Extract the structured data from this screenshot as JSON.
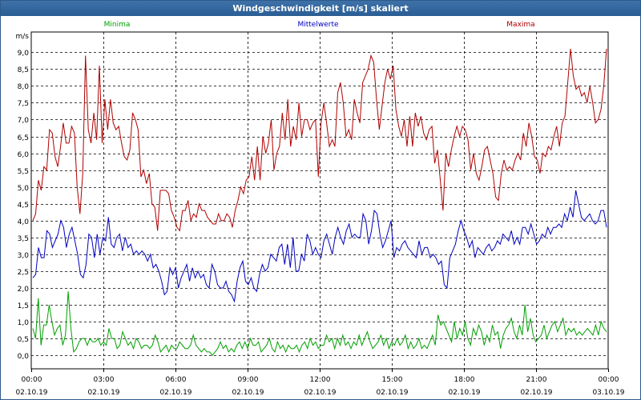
{
  "window": {
    "title": "Windgeschwindigkeit [m/s] skaliert"
  },
  "chart_data": {
    "type": "line",
    "title": "Windgeschwindigkeit [m/s] skaliert",
    "ylabel": "m/s",
    "ylim": [
      -0.4,
      9.6
    ],
    "y_ticks": [
      "0,0",
      "0,5",
      "1,0",
      "1,5",
      "2,0",
      "2,5",
      "3,0",
      "3,5",
      "4,0",
      "4,5",
      "5,0",
      "5,5",
      "6,0",
      "6,5",
      "7,0",
      "7,5",
      "8,0",
      "8,5",
      "9,0"
    ],
    "x_ticks": [
      {
        "time": "00:00",
        "date": "02.10.19"
      },
      {
        "time": "03:00",
        "date": "02.10.19"
      },
      {
        "time": "06:00",
        "date": "02.10.19"
      },
      {
        "time": "09:00",
        "date": "02.10.19"
      },
      {
        "time": "12:00",
        "date": "02.10.19"
      },
      {
        "time": "15:00",
        "date": "02.10.19"
      },
      {
        "time": "18:00",
        "date": "02.10.19"
      },
      {
        "time": "21:00",
        "date": "02.10.19"
      },
      {
        "time": "00:00",
        "date": "03.10.19"
      }
    ],
    "grid": true,
    "series": [
      {
        "name": "Minima",
        "color": "#00a000",
        "values": [
          0.8,
          0.5,
          1.7,
          0.3,
          0.9,
          0.9,
          1.5,
          1.0,
          0.6,
          0.8,
          0.9,
          0.3,
          0.6,
          1.9,
          0.8,
          0.1,
          0.2,
          0.4,
          0.5,
          0.5,
          0.3,
          0.5,
          0.4,
          0.4,
          0.5,
          0.3,
          0.4,
          0.3,
          0.8,
          0.5,
          0.5,
          0.2,
          0.3,
          0.7,
          0.5,
          0.3,
          0.4,
          0.2,
          0.5,
          0.4,
          0.2,
          0.3,
          0.3,
          0.2,
          0.3,
          0.6,
          0.4,
          0.1,
          0.2,
          0.3,
          0.1,
          0.3,
          0.2,
          0.2,
          0.4,
          0.3,
          0.2,
          0.2,
          0.3,
          0.6,
          0.3,
          0.2,
          0.1,
          0.2,
          0.1,
          0.1,
          0.0,
          0.1,
          0.2,
          0.4,
          0.2,
          0.3,
          0.1,
          0.2,
          0.1,
          0.3,
          0.4,
          0.2,
          0.4,
          0.2,
          0.5,
          0.3,
          0.3,
          0.4,
          0.1,
          0.2,
          0.3,
          0.5,
          0.2,
          0.1,
          0.4,
          0.2,
          0.3,
          0.1,
          0.3,
          0.2,
          0.2,
          0.3,
          0.1,
          0.3,
          0.4,
          0.2,
          0.5,
          0.3,
          0.4,
          0.2,
          0.3,
          0.3,
          0.6,
          0.4,
          0.5,
          0.2,
          0.5,
          0.3,
          0.6,
          0.3,
          0.4,
          0.2,
          0.4,
          0.3,
          0.6,
          0.3,
          0.5,
          0.7,
          0.4,
          0.2,
          0.3,
          0.4,
          0.6,
          0.3,
          0.5,
          0.2,
          0.4,
          0.3,
          0.5,
          0.3,
          0.4,
          0.6,
          0.2,
          0.4,
          0.2,
          0.3,
          0.5,
          0.2,
          0.3,
          0.2,
          0.4,
          0.6,
          0.3,
          1.2,
          0.9,
          1.0,
          0.8,
          0.6,
          0.4,
          1.0,
          0.5,
          0.8,
          0.6,
          1.0,
          0.5,
          0.3,
          0.8,
          0.6,
          0.9,
          0.7,
          0.3,
          0.6,
          0.4,
          0.9,
          0.6,
          0.7,
          0.2,
          0.6,
          0.8,
          0.9,
          1.1,
          0.7,
          0.5,
          0.9,
          0.6,
          1.5,
          0.7,
          1.1,
          0.6,
          0.4,
          0.5,
          0.6,
          0.9,
          0.5,
          0.7,
          0.9,
          1.0,
          0.7,
          0.9,
          1.1,
          0.6,
          0.8,
          0.7,
          0.8,
          0.6,
          0.7,
          0.6,
          0.7,
          0.8,
          0.7,
          0.6,
          0.9,
          0.6,
          1.0,
          0.8,
          0.7
        ]
      },
      {
        "name": "Mittelwerte",
        "color": "#0000c0",
        "values": [
          2.3,
          2.4,
          3.2,
          2.9,
          2.9,
          3.7,
          3.6,
          3.2,
          3.4,
          3.6,
          4.0,
          3.8,
          3.2,
          3.6,
          3.8,
          3.4,
          3.0,
          2.4,
          2.3,
          2.7,
          3.6,
          3.5,
          2.9,
          3.6,
          3.0,
          3.5,
          3.4,
          4.1,
          3.3,
          3.2,
          3.5,
          3.6,
          3.1,
          3.5,
          3.2,
          3.3,
          3.0,
          3.1,
          3.0,
          3.1,
          3.0,
          2.8,
          3.0,
          2.6,
          2.7,
          2.5,
          2.2,
          1.8,
          1.9,
          2.6,
          2.4,
          2.6,
          2.0,
          2.3,
          2.5,
          2.7,
          2.2,
          2.6,
          2.3,
          2.5,
          2.3,
          2.4,
          2.1,
          2.0,
          2.7,
          2.5,
          2.1,
          2.0,
          2.0,
          2.2,
          1.9,
          1.8,
          1.6,
          2.2,
          2.6,
          2.8,
          2.2,
          2.1,
          2.3,
          2.0,
          1.9,
          2.4,
          2.7,
          2.5,
          2.6,
          3.0,
          2.9,
          2.8,
          3.2,
          3.3,
          2.7,
          3.3,
          2.6,
          3.5,
          2.5,
          2.5,
          3.0,
          2.8,
          3.6,
          3.4,
          3.0,
          3.2,
          3.0,
          2.9,
          3.4,
          3.6,
          3.3,
          3.0,
          3.5,
          3.8,
          3.5,
          3.3,
          3.7,
          3.9,
          3.5,
          3.6,
          3.5,
          3.5,
          4.2,
          4.0,
          3.3,
          3.7,
          4.3,
          4.2,
          3.6,
          3.2,
          3.4,
          3.7,
          4.0,
          2.9,
          3.2,
          3.1,
          3.3,
          3.4,
          3.2,
          3.1,
          3.0,
          2.9,
          3.4,
          3.0,
          3.2,
          3.2,
          2.9,
          3.0,
          2.9,
          2.7,
          2.8,
          2.1,
          2.0,
          2.9,
          3.1,
          3.3,
          3.7,
          4.0,
          3.7,
          3.5,
          3.2,
          3.4,
          2.9,
          3.2,
          3.1,
          3.0,
          3.2,
          3.3,
          3.1,
          3.2,
          3.4,
          3.3,
          3.6,
          3.5,
          3.4,
          3.7,
          3.3,
          3.5,
          3.3,
          3.8,
          3.8,
          3.6,
          3.9,
          3.6,
          3.3,
          3.4,
          3.6,
          3.5,
          3.8,
          3.6,
          3.8,
          3.8,
          3.9,
          3.8,
          4.2,
          4.0,
          4.4,
          4.1,
          4.9,
          4.5,
          4.1,
          4.0,
          4.1,
          4.2,
          4.0,
          3.9,
          4.0,
          4.3,
          4.3,
          3.8
        ]
      },
      {
        "name": "Maxima",
        "color": "#b00000",
        "values": [
          4.0,
          4.2,
          5.2,
          4.9,
          5.6,
          5.5,
          6.7,
          6.6,
          5.9,
          5.6,
          6.2,
          6.9,
          6.3,
          6.3,
          6.8,
          6.6,
          5.0,
          4.2,
          5.4,
          8.9,
          6.7,
          6.3,
          7.2,
          6.4,
          8.6,
          6.3,
          7.6,
          6.7,
          7.6,
          6.9,
          6.7,
          6.8,
          6.3,
          5.9,
          5.8,
          6.1,
          7.2,
          7.0,
          6.7,
          5.3,
          5.5,
          5.1,
          5.4,
          4.5,
          4.4,
          3.7,
          4.9,
          4.9,
          4.9,
          4.8,
          4.3,
          4.1,
          3.8,
          3.7,
          4.3,
          4.3,
          4.6,
          4.0,
          4.2,
          4.1,
          4.5,
          4.3,
          4.3,
          4.1,
          4.0,
          3.9,
          3.9,
          4.2,
          4.0,
          4.0,
          4.2,
          4.1,
          3.8,
          4.3,
          4.6,
          5.0,
          4.8,
          5.2,
          5.3,
          5.9,
          5.2,
          6.2,
          5.2,
          6.5,
          6.0,
          6.3,
          7.0,
          5.5,
          6.0,
          6.2,
          7.2,
          6.4,
          7.6,
          6.2,
          6.8,
          6.4,
          7.5,
          6.5,
          7.0,
          7.0,
          6.7,
          6.9,
          7.0,
          5.3,
          6.9,
          7.5,
          6.9,
          6.2,
          6.4,
          6.2,
          7.8,
          8.1,
          7.5,
          6.5,
          6.7,
          6.4,
          7.6,
          7.2,
          6.9,
          8.1,
          8.3,
          8.5,
          8.9,
          8.7,
          7.6,
          6.7,
          7.4,
          8.1,
          8.5,
          8.2,
          8.6,
          7.3,
          6.8,
          6.5,
          7.0,
          6.2,
          7.1,
          6.2,
          7.2,
          6.8,
          7.1,
          6.6,
          6.4,
          6.7,
          6.8,
          5.7,
          6.1,
          5.2,
          4.3,
          6.0,
          5.6,
          6.1,
          6.5,
          6.8,
          6.5,
          6.8,
          6.7,
          6.4,
          5.5,
          6.0,
          5.4,
          5.2,
          5.6,
          6.1,
          6.2,
          5.8,
          5.4,
          4.7,
          4.6,
          5.4,
          5.8,
          5.5,
          5.6,
          5.5,
          5.8,
          6.0,
          5.8,
          6.6,
          6.2,
          6.9,
          6.5,
          5.9,
          5.8,
          5.4,
          6.0,
          5.9,
          6.2,
          6.1,
          6.5,
          6.8,
          6.2,
          6.9,
          7.1,
          8.1,
          9.1,
          8.3,
          7.9,
          8.0,
          7.7,
          7.8,
          7.5,
          8.0,
          7.5,
          6.9,
          7.0,
          7.3,
          8.0,
          9.1
        ]
      }
    ]
  }
}
